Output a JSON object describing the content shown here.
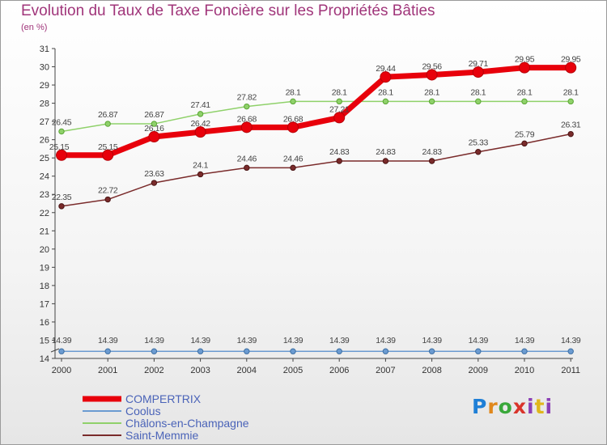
{
  "header": {
    "title": "Evolution du Taux de Taxe Foncière sur les Propriétés Bâties",
    "unit": "(en %)"
  },
  "logo": {
    "text": "Proxiti"
  },
  "chart_data": {
    "type": "line",
    "title": "Evolution du Taux de Taxe Foncière sur les Propriétés Bâties",
    "ylabel": "(en %)",
    "xlabel": "",
    "ylim": [
      14,
      31
    ],
    "yticks": [
      14,
      15,
      16,
      17,
      18,
      19,
      20,
      21,
      22,
      23,
      24,
      25,
      26,
      27,
      28,
      29,
      30,
      31
    ],
    "categories": [
      "2000",
      "2001",
      "2002",
      "2003",
      "2004",
      "2005",
      "2006",
      "2007",
      "2008",
      "2009",
      "2010",
      "2011"
    ],
    "grid": false,
    "legend_position": "bottom-left",
    "series": [
      {
        "name": "COMPERTRIX",
        "color": "#e8000b",
        "values": [
          25.15,
          25.15,
          26.16,
          26.42,
          26.68,
          26.68,
          27.21,
          29.44,
          29.56,
          29.71,
          29.95,
          29.95
        ],
        "labels": [
          "25.15",
          "25.15",
          "26.16",
          "26.42",
          "26.68",
          "26.68",
          "27.21",
          "29.44",
          "29.56",
          "29.71",
          "29.95",
          "29.95"
        ]
      },
      {
        "name": "Coolus",
        "color": "#6b9bd1",
        "values": [
          14.39,
          14.39,
          14.39,
          14.39,
          14.39,
          14.39,
          14.39,
          14.39,
          14.39,
          14.39,
          14.39,
          14.39
        ],
        "labels": [
          "14.39",
          "14.39",
          "14.39",
          "14.39",
          "14.39",
          "14.39",
          "14.39",
          "14.39",
          "14.39",
          "14.39",
          "14.39",
          "14.39"
        ]
      },
      {
        "name": "Châlons-en-Champagne",
        "color": "#8fd16a",
        "values": [
          26.45,
          26.87,
          26.87,
          27.41,
          27.82,
          28.1,
          28.1,
          28.1,
          28.1,
          28.1,
          28.1,
          28.1
        ],
        "labels": [
          "26.45",
          "26.87",
          "26.87",
          "27.41",
          "27.82",
          "28.1",
          "28.1",
          "28.1",
          "28.1",
          "28.1",
          "28.1",
          "28.1"
        ]
      },
      {
        "name": "Saint-Memmie",
        "color": "#7a2b2b",
        "values": [
          22.35,
          22.72,
          23.63,
          24.1,
          24.46,
          24.46,
          24.83,
          24.83,
          24.83,
          25.33,
          25.79,
          26.31
        ],
        "labels": [
          "22.35",
          "22.72",
          "23.63",
          "24.1",
          "24.46",
          "24.46",
          "24.83",
          "24.83",
          "24.83",
          "25.33",
          "25.79",
          "26.31"
        ]
      }
    ]
  }
}
